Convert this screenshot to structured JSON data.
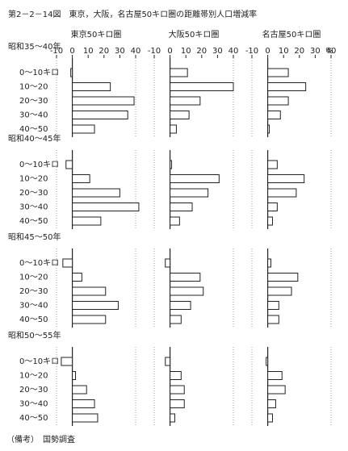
{
  "title": "第2－2－14図　東京，大阪，名古屋50キロ圏の距離帯別人口増減率",
  "note": "（備考）　国勢調査",
  "unit": "%",
  "panels": [
    "東京50キロ圏",
    "大阪50キロ圏",
    "名古屋50キロ圏"
  ],
  "xlim": [
    -10,
    40
  ],
  "xticks": [
    -10,
    0,
    10,
    20,
    30,
    40
  ],
  "chart_data": [
    {
      "type": "bar",
      "title": "昭和35～40年",
      "categories": [
        "0～10キロ",
        "10～20",
        "20～30",
        "30～40",
        "40～50"
      ],
      "series": [
        {
          "values": [
            -1,
            24,
            39,
            35,
            14
          ]
        },
        {
          "values": [
            11,
            40,
            19,
            12,
            4
          ]
        },
        {
          "values": [
            13,
            24,
            13,
            8,
            1
          ]
        }
      ]
    },
    {
      "type": "bar",
      "title": "昭和40～45年",
      "categories": [
        "0～10キロ",
        "10～20",
        "20～30",
        "30～40",
        "40～50"
      ],
      "series": [
        {
          "values": [
            -4,
            11,
            30,
            42,
            18
          ]
        },
        {
          "values": [
            1,
            31,
            24,
            14,
            6
          ]
        },
        {
          "values": [
            6,
            23,
            18,
            6,
            3
          ]
        }
      ]
    },
    {
      "type": "bar",
      "title": "昭和45～50年",
      "categories": [
        "0～10キロ",
        "10～20",
        "20～30",
        "30～40",
        "40～50"
      ],
      "series": [
        {
          "values": [
            -6,
            6,
            21,
            29,
            21
          ]
        },
        {
          "values": [
            -3,
            19,
            21,
            13,
            7
          ]
        },
        {
          "values": [
            2,
            19,
            15,
            7,
            7
          ]
        }
      ]
    },
    {
      "type": "bar",
      "title": "昭和50～55年",
      "categories": [
        "0～10キロ",
        "10～20",
        "20～30",
        "30～40",
        "40～50"
      ],
      "series": [
        {
          "values": [
            -7,
            2,
            9,
            14,
            16
          ]
        },
        {
          "values": [
            -3,
            7,
            9,
            9,
            3
          ]
        },
        {
          "values": [
            -1,
            9,
            11,
            5,
            3
          ]
        }
      ]
    }
  ]
}
